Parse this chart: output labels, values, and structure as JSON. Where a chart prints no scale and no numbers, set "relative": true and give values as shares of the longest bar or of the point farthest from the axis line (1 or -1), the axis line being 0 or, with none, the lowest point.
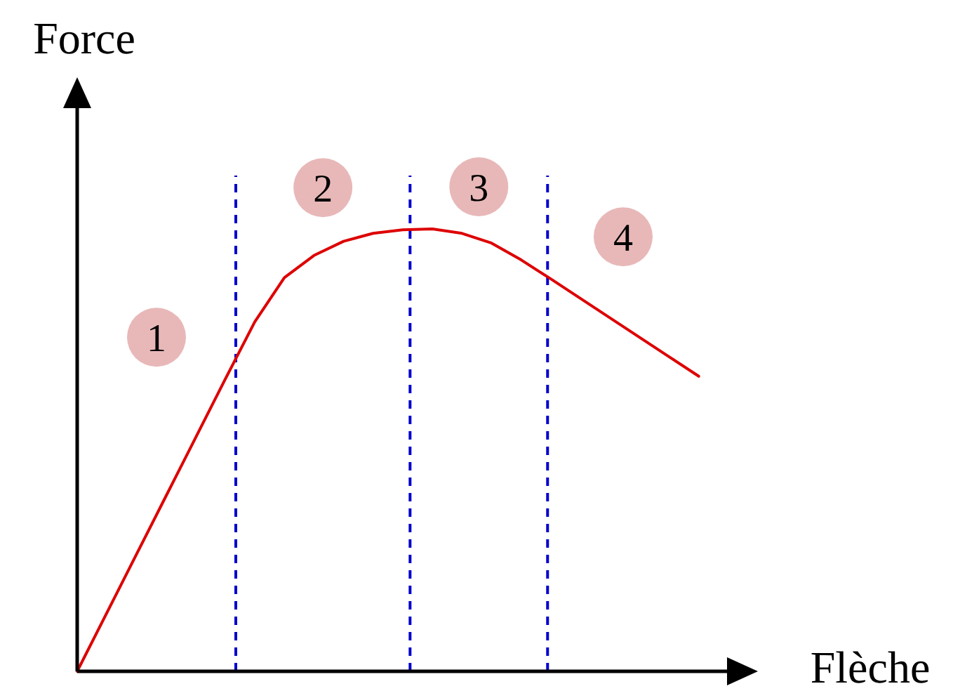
{
  "chart_data": {
    "type": "line",
    "relative": true,
    "xlabel": "Flèche",
    "ylabel": "Force",
    "line_style": "solid",
    "categories": [
      null,
      null,
      null,
      null,
      null,
      null,
      null,
      null,
      null,
      null,
      null,
      null,
      null,
      null,
      null,
      null,
      null,
      null,
      null,
      null,
      null,
      null,
      null,
      null
    ],
    "series": [
      {
        "color": "#dd0000",
        "values": [
          0,
          0.132,
          0.264,
          0.396,
          0.528,
          0.66,
          0.79,
          0.89,
          0.94,
          0.972,
          0.99,
          0.998,
          1,
          0.99,
          0.968,
          0.93,
          0.887,
          0.843,
          0.799,
          0.755,
          0.711,
          0.667,
          null,
          null
        ]
      }
    ],
    "annotations": [
      "1",
      "2",
      "3",
      "4"
    ]
  }
}
